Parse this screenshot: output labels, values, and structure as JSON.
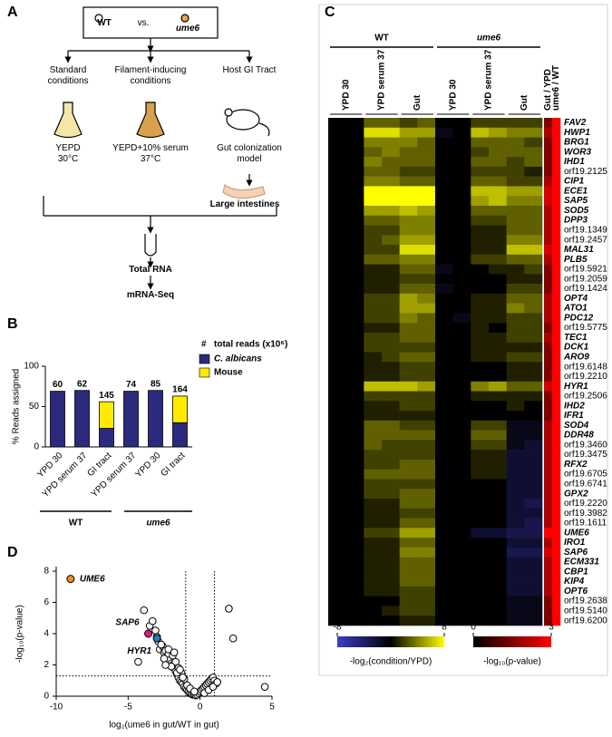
{
  "panel_labels": [
    "A",
    "B",
    "C",
    "D"
  ],
  "diagram": {
    "comparison": {
      "left": "WT",
      "middle": "vs.",
      "right": "ume6"
    },
    "conditions": [
      {
        "title": "Standard conditions",
        "medium": "YEPD 30°C"
      },
      {
        "title": "Filament-inducing conditions",
        "medium": "YEPD+10% serum 37°C"
      },
      {
        "title": "Host GI Tract",
        "medium": "Gut colonization model"
      }
    ],
    "tissue": "Large intestines",
    "steps": [
      "Total RNA",
      "mRNA-Seq"
    ]
  },
  "chart_data": [
    {
      "type": "bar",
      "stacked": true,
      "ylabel": "% Reads assigned",
      "categories": [
        "YPD 30",
        "YPD serum 37",
        "GI tract",
        "YPD serum 37",
        "YPD 30",
        "GI tract"
      ],
      "groups": [
        "WT",
        "ume6"
      ],
      "series": [
        {
          "name": "C. albicans",
          "color": "#2b2a7c",
          "values": [
            69,
            70,
            23,
            69,
            70,
            30
          ]
        },
        {
          "name": "Mouse",
          "color": "#ffea00",
          "values": [
            0,
            0,
            33,
            0,
            0,
            33
          ]
        }
      ],
      "annotations": {
        "symbol": "#",
        "label": "total reads (x10⁶)",
        "color": "#2ca02c",
        "values": [
          60,
          62,
          145,
          74,
          85,
          164
        ]
      },
      "ylim": [
        0,
        100
      ],
      "yticks": [
        0,
        50,
        100
      ]
    },
    {
      "type": "heatmap",
      "groups": [
        "WT",
        "ume6"
      ],
      "conditions": [
        "YPD 30",
        "YPD serum 37",
        "Gut"
      ],
      "rows": [
        "FAV2",
        "HWP1",
        "BRG1",
        "WOR3",
        "IHD1",
        "orf19.2125",
        "CIP1",
        "ECE1",
        "SAP5",
        "SOD5",
        "DPP3",
        "orf19.1349",
        "orf19.2457",
        "MAL31",
        "PLB5",
        "orf19.5921",
        "orf19.2059",
        "orf19.1424",
        "OPT4",
        "ATO1",
        "PDC12",
        "orf19.5775",
        "TEC1",
        "DCK1",
        "ARO9",
        "orf19.6148",
        "orf19.2210",
        "HYR1",
        "orf19.2506",
        "IHD2",
        "IFR1",
        "SOD4",
        "DDR48",
        "orf19.3460",
        "orf19.3475",
        "RFX2",
        "orf19.6705",
        "orf19.6741",
        "GPX2",
        "orf19.2220",
        "orf19.3982",
        "orf19.1611",
        "UME6",
        "IRO1",
        "SAP6",
        "ECM331",
        "CBP1",
        "KIP4",
        "OPT6",
        "orf19.2638",
        "orf19.5140",
        "orf19.6200"
      ],
      "values": [
        [
          0,
          0,
          3,
          3,
          2,
          3,
          0,
          0,
          2,
          2,
          2,
          2
        ],
        [
          0,
          0,
          7,
          7,
          5,
          5,
          -1,
          0,
          6,
          5,
          4,
          4
        ],
        [
          0,
          0,
          4,
          4,
          4,
          3,
          0,
          0,
          3,
          3,
          3,
          2
        ],
        [
          0,
          0,
          3,
          4,
          3,
          3,
          0,
          0,
          2,
          3,
          3,
          3
        ],
        [
          0,
          0,
          4,
          3,
          3,
          3,
          0,
          0,
          3,
          3,
          2,
          3
        ],
        [
          0,
          0,
          3,
          3,
          2,
          2,
          0,
          0,
          2,
          2,
          2,
          1
        ],
        [
          0,
          0,
          4,
          4,
          3,
          3,
          0,
          0,
          3,
          3,
          2,
          2
        ],
        [
          0,
          0,
          8,
          8,
          8,
          8,
          0,
          0,
          6,
          6,
          5,
          5
        ],
        [
          0,
          0,
          8,
          8,
          8,
          8,
          0,
          0,
          5,
          6,
          4,
          4
        ],
        [
          0,
          0,
          5,
          5,
          6,
          5,
          0,
          0,
          3,
          3,
          3,
          3
        ],
        [
          0,
          0,
          3,
          3,
          4,
          4,
          0,
          0,
          2,
          2,
          3,
          3
        ],
        [
          0,
          0,
          2,
          2,
          4,
          4,
          0,
          0,
          1,
          1,
          3,
          3
        ],
        [
          0,
          0,
          2,
          3,
          5,
          5,
          0,
          0,
          1,
          1,
          4,
          4
        ],
        [
          0,
          0,
          2,
          2,
          7,
          7,
          0,
          0,
          1,
          1,
          6,
          6
        ],
        [
          0,
          0,
          3,
          3,
          4,
          4,
          0,
          0,
          2,
          2,
          3,
          3
        ],
        [
          0,
          0,
          1,
          1,
          3,
          3,
          -1,
          0,
          0,
          1,
          1,
          2
        ],
        [
          0,
          0,
          1,
          1,
          2,
          2,
          0,
          0,
          0,
          0,
          1,
          1
        ],
        [
          0,
          0,
          1,
          1,
          3,
          3,
          -1,
          0,
          0,
          0,
          2,
          2
        ],
        [
          0,
          0,
          2,
          2,
          5,
          4,
          0,
          0,
          1,
          1,
          3,
          3
        ],
        [
          0,
          0,
          2,
          2,
          5,
          5,
          0,
          0,
          1,
          1,
          4,
          3
        ],
        [
          0,
          0,
          2,
          2,
          4,
          3,
          0,
          -1,
          1,
          1,
          2,
          2
        ],
        [
          0,
          0,
          1,
          1,
          3,
          3,
          0,
          0,
          1,
          0,
          2,
          2
        ],
        [
          0,
          0,
          2,
          2,
          3,
          3,
          0,
          0,
          1,
          1,
          2,
          2
        ],
        [
          0,
          0,
          2,
          2,
          2,
          2,
          0,
          0,
          1,
          1,
          1,
          1
        ],
        [
          0,
          0,
          1,
          2,
          3,
          3,
          0,
          0,
          1,
          1,
          2,
          2
        ],
        [
          0,
          0,
          1,
          1,
          2,
          2,
          0,
          0,
          0,
          0,
          1,
          1
        ],
        [
          0,
          0,
          1,
          1,
          2,
          2,
          0,
          0,
          0,
          0,
          1,
          1
        ],
        [
          0,
          0,
          6,
          6,
          6,
          5,
          0,
          0,
          4,
          5,
          3,
          3
        ],
        [
          0,
          0,
          2,
          2,
          2,
          2,
          0,
          0,
          1,
          1,
          1,
          1
        ],
        [
          0,
          0,
          1,
          1,
          2,
          2,
          0,
          0,
          0,
          0,
          1,
          0
        ],
        [
          0,
          0,
          1,
          1,
          1,
          1,
          0,
          0,
          0,
          0,
          0,
          0
        ],
        [
          0,
          0,
          3,
          3,
          2,
          2,
          0,
          0,
          2,
          2,
          -1,
          -1
        ],
        [
          0,
          0,
          3,
          3,
          3,
          3,
          0,
          0,
          3,
          3,
          -1,
          -1
        ],
        [
          0,
          0,
          3,
          2,
          2,
          2,
          0,
          0,
          2,
          2,
          -1,
          -2
        ],
        [
          0,
          0,
          2,
          2,
          2,
          2,
          0,
          0,
          1,
          1,
          -2,
          -2
        ],
        [
          0,
          0,
          2,
          2,
          3,
          3,
          0,
          0,
          1,
          1,
          -2,
          -2
        ],
        [
          0,
          0,
          3,
          3,
          3,
          3,
          0,
          0,
          1,
          1,
          -2,
          -2
        ],
        [
          0,
          0,
          2,
          2,
          2,
          2,
          0,
          0,
          0,
          0,
          -2,
          -2
        ],
        [
          0,
          0,
          2,
          2,
          3,
          3,
          0,
          0,
          0,
          0,
          -2,
          -2
        ],
        [
          0,
          0,
          1,
          1,
          3,
          3,
          0,
          0,
          0,
          0,
          -2,
          -3
        ],
        [
          0,
          0,
          1,
          1,
          2,
          2,
          0,
          0,
          0,
          0,
          -2,
          -2
        ],
        [
          0,
          0,
          1,
          1,
          3,
          3,
          0,
          0,
          0,
          0,
          -2,
          -3
        ],
        [
          0,
          0,
          2,
          2,
          5,
          5,
          0,
          0,
          -2,
          -2,
          -3,
          -3
        ],
        [
          0,
          0,
          1,
          1,
          3,
          3,
          0,
          0,
          0,
          0,
          -2,
          -2
        ],
        [
          0,
          0,
          1,
          1,
          4,
          4,
          0,
          0,
          0,
          0,
          -3,
          -3
        ],
        [
          0,
          0,
          1,
          1,
          3,
          3,
          0,
          0,
          0,
          0,
          -2,
          -2
        ],
        [
          0,
          0,
          1,
          1,
          3,
          3,
          0,
          0,
          0,
          0,
          -2,
          -2
        ],
        [
          0,
          0,
          1,
          1,
          3,
          3,
          0,
          0,
          0,
          0,
          -2,
          -2
        ],
        [
          0,
          0,
          1,
          1,
          2,
          2,
          0,
          0,
          0,
          0,
          -2,
          -2
        ],
        [
          0,
          0,
          0,
          0,
          2,
          2,
          0,
          0,
          0,
          0,
          -1,
          -1
        ],
        [
          0,
          0,
          0,
          1,
          2,
          2,
          0,
          0,
          0,
          0,
          -1,
          -1
        ],
        [
          0,
          0,
          0,
          0,
          1,
          1,
          0,
          0,
          0,
          0,
          -1,
          -1
        ]
      ],
      "vlim": [
        -8,
        8
      ],
      "vticks": [
        -8,
        8
      ],
      "colors": [
        "#3c3cc8",
        "#000000",
        "#ffff00"
      ],
      "colorbar_label": "-log₂(condition/YPD)",
      "pvalue": {
        "columns": [
          "Gut / YPD",
          "ume6 / WT"
        ],
        "values": [
          [
            1.5,
            3
          ],
          [
            2,
            3
          ],
          [
            1.5,
            3
          ],
          [
            1.5,
            3
          ],
          [
            1.5,
            3
          ],
          [
            1.5,
            3
          ],
          [
            2,
            3
          ],
          [
            2.5,
            3
          ],
          [
            2.5,
            3
          ],
          [
            2,
            3
          ],
          [
            2,
            3
          ],
          [
            2,
            3
          ],
          [
            2,
            3
          ],
          [
            2.5,
            3
          ],
          [
            2,
            3
          ],
          [
            1.5,
            3
          ],
          [
            1.5,
            3
          ],
          [
            1.5,
            3
          ],
          [
            2,
            3
          ],
          [
            2,
            3
          ],
          [
            2,
            3
          ],
          [
            1.5,
            3
          ],
          [
            2,
            3
          ],
          [
            1.5,
            3
          ],
          [
            1.5,
            3
          ],
          [
            1.5,
            3
          ],
          [
            1.5,
            3
          ],
          [
            2.5,
            3
          ],
          [
            1.5,
            3
          ],
          [
            1.5,
            3
          ],
          [
            1.5,
            3
          ],
          [
            2,
            3
          ],
          [
            2,
            3
          ],
          [
            2,
            3
          ],
          [
            2,
            3
          ],
          [
            2,
            3
          ],
          [
            2,
            3
          ],
          [
            2,
            3
          ],
          [
            2,
            3
          ],
          [
            2,
            3
          ],
          [
            2,
            3
          ],
          [
            2,
            3
          ],
          [
            3,
            3
          ],
          [
            2,
            3
          ],
          [
            2.5,
            3
          ],
          [
            2,
            3
          ],
          [
            2,
            3
          ],
          [
            2,
            3
          ],
          [
            2,
            3
          ],
          [
            1.5,
            3
          ],
          [
            1.5,
            3
          ],
          [
            1.5,
            3
          ]
        ],
        "vlim": [
          0,
          3
        ],
        "vticks": [
          0,
          3
        ],
        "colors": [
          "#000000",
          "#ff0000"
        ],
        "colorbar_label": "-log₁₀(p-value)"
      }
    },
    {
      "type": "scatter",
      "xlabel": "log₂(ume6 in gut/WT in gut)",
      "ylabel": "-log₁₀(p-value)",
      "x": [
        -3.9,
        -3.5,
        -3.3,
        -3.1,
        -2.9,
        -2.8,
        -2.6,
        -2.5,
        -2.4,
        -2.3,
        -2.2,
        -2.1,
        -2.0,
        -1.9,
        -1.8,
        -1.7,
        -1.6,
        -1.5,
        -1.4,
        -1.3,
        -1.2,
        -1.1,
        -1.0,
        -0.9,
        -0.8,
        -0.7,
        -0.6,
        -0.5,
        -0.4,
        -0.3,
        -0.2,
        -0.1,
        0.0,
        0.1,
        0.2,
        0.3,
        0.4,
        0.5,
        0.6,
        0.7,
        0.8,
        0.9,
        1.0,
        1.1,
        2.0,
        2.3,
        4.5,
        -2.7,
        -2.2,
        -1.9,
        -1.7,
        -1.5,
        -1.3,
        -1.1,
        -0.9,
        -2.5,
        -2.0,
        -1.6,
        -1.2,
        -0.7,
        -0.4,
        0.3,
        0.6,
        0.9,
        1.2,
        -4.3,
        -3.0,
        -2.4,
        -1.8,
        -1.4
      ],
      "y": [
        5.5,
        4.5,
        4.8,
        4.2,
        3.5,
        3.0,
        3.2,
        2.8,
        2.9,
        2.5,
        2.7,
        2.3,
        2.1,
        2.0,
        1.8,
        1.6,
        1.4,
        1.2,
        1.0,
        0.9,
        0.8,
        0.6,
        0.5,
        0.4,
        0.3,
        0.2,
        0.15,
        0.1,
        0.1,
        0.05,
        0.1,
        0.2,
        0.3,
        0.4,
        0.5,
        0.6,
        0.7,
        0.8,
        0.9,
        1.0,
        1.1,
        1.2,
        1.0,
        0.8,
        5.6,
        3.7,
        0.6,
        3.3,
        3.0,
        2.6,
        2.2,
        1.8,
        1.5,
        1.1,
        0.7,
        2.4,
        1.9,
        1.5,
        1.2,
        0.5,
        0.3,
        0.2,
        0.4,
        0.6,
        0.9,
        2.2,
        3.8,
        2.0,
        2.8,
        1.7
      ],
      "highlights": [
        {
          "label": "UME6",
          "color": "#f08c1e",
          "x": -9.0,
          "y": 7.5
        },
        {
          "label": "SAP6",
          "color": "#e0197d",
          "x": -3.6,
          "y": 4.0
        },
        {
          "label": "HYR1",
          "color": "#2b7bba",
          "x": -3.0,
          "y": 3.7
        }
      ],
      "xlim": [
        -10,
        5
      ],
      "ylim": [
        0,
        8
      ],
      "xticks": [
        -10,
        -5,
        0,
        5
      ],
      "yticks": [
        0,
        2,
        4,
        6,
        8
      ],
      "vlines": [
        -1,
        1
      ],
      "hline": 1.3
    }
  ]
}
